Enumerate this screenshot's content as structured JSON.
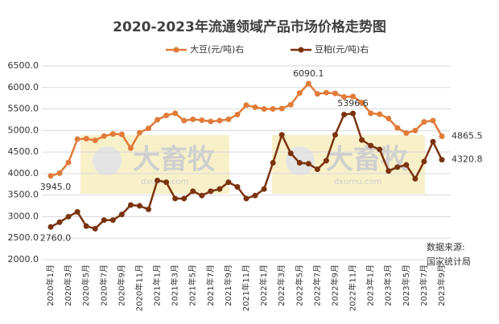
{
  "chart_data": {
    "type": "line",
    "title": "2020-2023年流通领域产品市场价格走势图",
    "categories": [
      "2020年1月",
      null,
      "2020年3月",
      null,
      "2020年5月",
      null,
      "2020年7月",
      null,
      "2020年9月",
      null,
      "2020年11月",
      null,
      "2021年1月",
      null,
      "2021年3月",
      null,
      "2021年5月",
      null,
      "2021年7月",
      null,
      "2021年9月",
      null,
      "2021年11月",
      null,
      "2022年1月",
      null,
      "2022年3月",
      null,
      "2022年5月",
      null,
      "2022年7月",
      null,
      "2022年9月",
      null,
      "2022年11月",
      null,
      "2023年1月",
      null,
      "2023年3月",
      null,
      "2023年5月",
      null,
      "2023年7月",
      null,
      "2023年9月"
    ],
    "series": [
      {
        "name": "大豆(元/吨)右",
        "color": "#e07b39",
        "values": [
          3945.0,
          4010,
          4260,
          4800,
          4810,
          4770,
          4870,
          4920,
          4910,
          4590,
          4950,
          5050,
          5250,
          5350,
          5400,
          5230,
          5260,
          5240,
          5210,
          5230,
          5260,
          5370,
          5590,
          5540,
          5500,
          5500,
          5510,
          5600,
          5870,
          6090.1,
          5850,
          5880,
          5860,
          5780,
          5790,
          5650,
          5400,
          5380,
          5280,
          5060,
          4940,
          5000,
          5200,
          5230,
          4865.5
        ],
        "value_labels": [
          "3945.0",
          null,
          null,
          null,
          null,
          null,
          null,
          null,
          null,
          null,
          null,
          null,
          null,
          null,
          null,
          null,
          null,
          null,
          null,
          null,
          null,
          null,
          null,
          null,
          null,
          null,
          null,
          null,
          null,
          "6090.1",
          null,
          null,
          null,
          null,
          null,
          null,
          null,
          null,
          null,
          null,
          null,
          null,
          null,
          null,
          "4865.5"
        ]
      },
      {
        "name": "豆粕(元/吨)右",
        "color": "#7b3310",
        "values": [
          2760.0,
          2870,
          3000,
          3110,
          2780,
          2720,
          2920,
          2920,
          3050,
          3270,
          3250,
          3170,
          3840,
          3800,
          3420,
          3420,
          3590,
          3490,
          3590,
          3640,
          3800,
          3690,
          3420,
          3490,
          3640,
          4250,
          4900,
          4470,
          4250,
          4230,
          4100,
          4300,
          4900,
          5370,
          5396.6,
          4780,
          4650,
          4560,
          4060,
          4150,
          4200,
          3880,
          4280,
          4740,
          4320.8
        ],
        "value_labels": [
          "2760.0",
          null,
          null,
          null,
          null,
          null,
          null,
          null,
          null,
          null,
          null,
          null,
          null,
          null,
          null,
          null,
          null,
          null,
          null,
          null,
          null,
          null,
          null,
          null,
          null,
          null,
          null,
          null,
          null,
          null,
          null,
          null,
          null,
          null,
          "5396.6",
          null,
          null,
          null,
          null,
          null,
          null,
          null,
          null,
          null,
          "4320.8"
        ]
      }
    ],
    "ylim": [
      2000,
      6500
    ],
    "yticks": [
      {
        "value": 2000,
        "label": "2000.0"
      },
      {
        "value": 2500,
        "label": "2500.0"
      },
      {
        "value": 3000,
        "label": "3000.0"
      },
      {
        "value": 3500,
        "label": "3500.0"
      },
      {
        "value": 4000,
        "label": "4000.0"
      },
      {
        "value": 4500,
        "label": "4500.0"
      },
      {
        "value": 5000,
        "label": "5000.0"
      },
      {
        "value": 5500,
        "label": "5500.0"
      },
      {
        "value": 6000,
        "label": "6000.0"
      },
      {
        "value": 6500,
        "label": "6500.0"
      }
    ],
    "grid": true,
    "legend": "top",
    "watermark": {
      "brand": "大畜牧",
      "site": "dxumu.com"
    },
    "source": [
      "数据来源:",
      "国家统计局"
    ]
  }
}
